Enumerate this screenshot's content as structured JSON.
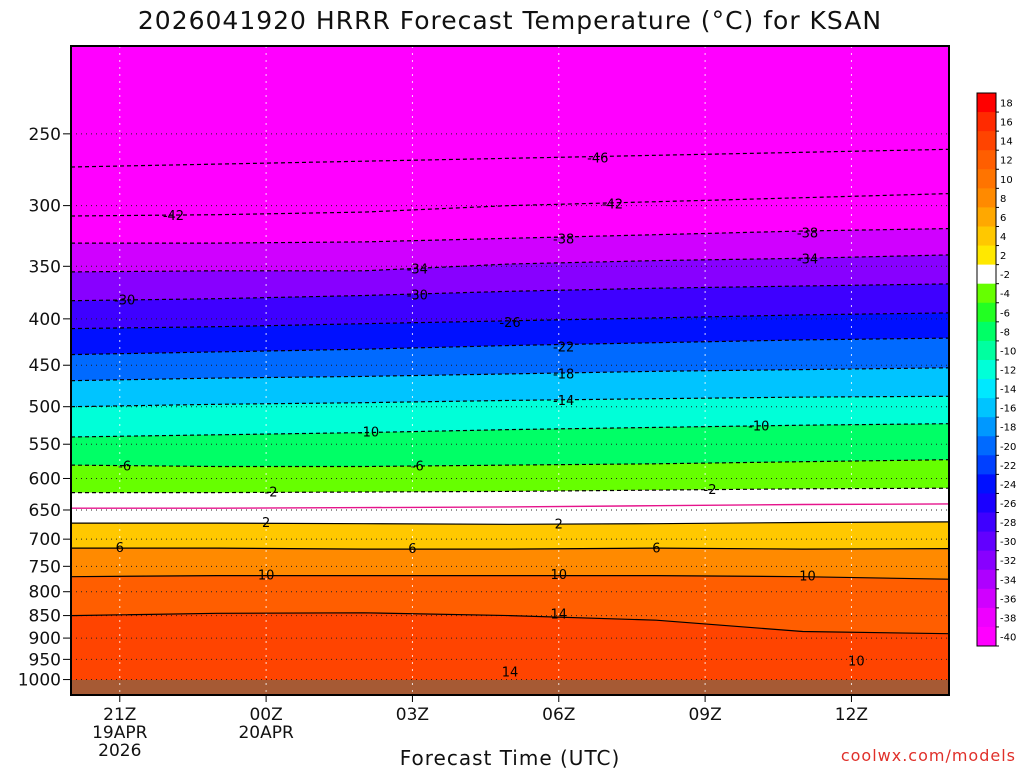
{
  "chart_data": {
    "type": "contour-filled",
    "title": "2026041920 HRRR Forecast Temperature (°C) for KSAN",
    "xlabel": "Forecast Time (UTC)",
    "ylabel": "",
    "credit": "coolwx.com/models",
    "x_ticks": [
      {
        "label": "21Z",
        "hour": 1,
        "date_line1": "19APR",
        "date_line2": "2026"
      },
      {
        "label": "00Z",
        "hour": 4,
        "date_line1": "20APR",
        "date_line2": ""
      },
      {
        "label": "03Z",
        "hour": 7,
        "date_line1": "",
        "date_line2": ""
      },
      {
        "label": "06Z",
        "hour": 10,
        "date_line1": "",
        "date_line2": ""
      },
      {
        "label": "09Z",
        "hour": 13,
        "date_line1": "",
        "date_line2": ""
      },
      {
        "label": "12Z",
        "hour": 16,
        "date_line1": "",
        "date_line2": ""
      }
    ],
    "x_range_hours": [
      0,
      18
    ],
    "y_axis": {
      "units": "hPa",
      "scale": "log",
      "reversed": true,
      "range": [
        1040,
        200
      ],
      "ticks": [
        "250",
        "300",
        "350",
        "400",
        "450",
        "500",
        "550",
        "600",
        "650",
        "700",
        "750",
        "800",
        "850",
        "900",
        "950",
        "1000"
      ]
    },
    "colorbar": {
      "labels": [
        "18",
        "16",
        "14",
        "12",
        "10",
        "8",
        "6",
        "4",
        "2",
        "-2",
        "-4",
        "-6",
        "-8",
        "-10",
        "-12",
        "-14",
        "-16",
        "-18",
        "-20",
        "-22",
        "-24",
        "-26",
        "-28",
        "-30",
        "-32",
        "-34",
        "-36",
        "-38",
        "-40"
      ],
      "colors": [
        "#ff0000",
        "#ff2a00",
        "#ff4400",
        "#ff5e00",
        "#ff7400",
        "#ff8a00",
        "#ffa800",
        "#ffc800",
        "#ffe800",
        "#ffffff",
        "#66ff00",
        "#22ff22",
        "#00ff66",
        "#00ffa0",
        "#00ffd8",
        "#00e8ff",
        "#00c4ff",
        "#0098ff",
        "#006aff",
        "#0040ff",
        "#0010ff",
        "#1a00ff",
        "#3e00ff",
        "#6200ff",
        "#8800ff",
        "#ae00ff",
        "#d000ff",
        "#ee00ff",
        "#ff00ff"
      ]
    },
    "isotherms": [
      {
        "value": -46,
        "label": "-46",
        "pressure": [
          272,
          270,
          268,
          266,
          264,
          262,
          260
        ]
      },
      {
        "value": -42,
        "label": "-42",
        "pressure": [
          308,
          307,
          305,
          300,
          297,
          294,
          291
        ]
      },
      {
        "value": -38,
        "label": "-38",
        "pressure": [
          330,
          330,
          329,
          326,
          323,
          320,
          318
        ]
      },
      {
        "value": -34,
        "label": "-34",
        "pressure": [
          355,
          354,
          354,
          348,
          345,
          343,
          340
        ]
      },
      {
        "value": -30,
        "label": "-30",
        "pressure": [
          382,
          380,
          377,
          373,
          370,
          368,
          366
        ]
      },
      {
        "value": -26,
        "label": "-26",
        "pressure": [
          410,
          408,
          405,
          402,
          399,
          396,
          394
        ]
      },
      {
        "value": -22,
        "label": "-22",
        "pressure": [
          438,
          435,
          432,
          428,
          425,
          422,
          420
        ]
      },
      {
        "value": -18,
        "label": "-18",
        "pressure": [
          468,
          465,
          463,
          460,
          457,
          455,
          453
        ]
      },
      {
        "value": -14,
        "label": "-14",
        "pressure": [
          500,
          497,
          495,
          492,
          490,
          488,
          487
        ]
      },
      {
        "value": -10,
        "label": "-10",
        "pressure": [
          540,
          537,
          534,
          530,
          527,
          524,
          522
        ]
      },
      {
        "value": -6,
        "label": "-6",
        "pressure": [
          580,
          582,
          582,
          580,
          578,
          575,
          572
        ]
      },
      {
        "value": -2,
        "label": "-2",
        "pressure": [
          622,
          622,
          621,
          620,
          618,
          616,
          615
        ]
      },
      {
        "value": 0,
        "label": "",
        "pressure": [
          647,
          647,
          646,
          645,
          643,
          641,
          640
        ]
      },
      {
        "value": 2,
        "label": "2",
        "pressure": [
          672,
          672,
          673,
          674,
          673,
          671,
          670
        ]
      },
      {
        "value": 6,
        "label": "6",
        "pressure": [
          716,
          716,
          718,
          718,
          716,
          718,
          717
        ]
      },
      {
        "value": 10,
        "label": "10",
        "pressure": [
          770,
          768,
          768,
          768,
          768,
          770,
          775
        ]
      },
      {
        "value": 14,
        "label": "14",
        "pressure": [
          850,
          845,
          844,
          850,
          860,
          885,
          890
        ]
      }
    ],
    "contour_labels": [
      {
        "text": "-46",
        "hour": 10.8,
        "pressure": 266
      },
      {
        "text": "-42",
        "hour": 2.1,
        "pressure": 308
      },
      {
        "text": "-42",
        "hour": 11.1,
        "pressure": 299
      },
      {
        "text": "-38",
        "hour": 10.1,
        "pressure": 327
      },
      {
        "text": "-38",
        "hour": 15.1,
        "pressure": 322
      },
      {
        "text": "-34",
        "hour": 7.1,
        "pressure": 353
      },
      {
        "text": "-34",
        "hour": 15.1,
        "pressure": 344
      },
      {
        "text": "-30",
        "hour": 1.1,
        "pressure": 382
      },
      {
        "text": "-30",
        "hour": 7.1,
        "pressure": 377
      },
      {
        "text": "-26",
        "hour": 9.0,
        "pressure": 404
      },
      {
        "text": "-22",
        "hour": 10.1,
        "pressure": 430
      },
      {
        "text": "-18",
        "hour": 10.1,
        "pressure": 461
      },
      {
        "text": "-14",
        "hour": 10.1,
        "pressure": 493
      },
      {
        "text": "-10",
        "hour": 6.1,
        "pressure": 534
      },
      {
        "text": "-10",
        "hour": 14.1,
        "pressure": 526
      },
      {
        "text": "-6",
        "hour": 1.1,
        "pressure": 582
      },
      {
        "text": "-6",
        "hour": 7.1,
        "pressure": 582
      },
      {
        "text": "-2",
        "hour": 4.1,
        "pressure": 622
      },
      {
        "text": "-2",
        "hour": 13.1,
        "pressure": 618
      },
      {
        "text": "2",
        "hour": 4.0,
        "pressure": 672
      },
      {
        "text": "2",
        "hour": 10.0,
        "pressure": 674
      },
      {
        "text": "6",
        "hour": 1.0,
        "pressure": 716
      },
      {
        "text": "6",
        "hour": 7.0,
        "pressure": 718
      },
      {
        "text": "6",
        "hour": 12.0,
        "pressure": 717
      },
      {
        "text": "10",
        "hour": 4.0,
        "pressure": 768
      },
      {
        "text": "10",
        "hour": 10.0,
        "pressure": 767
      },
      {
        "text": "10",
        "hour": 15.1,
        "pressure": 770
      },
      {
        "text": "10",
        "hour": 16.1,
        "pressure": 955
      },
      {
        "text": "14",
        "hour": 10.0,
        "pressure": 848
      },
      {
        "text": "14",
        "hour": 9.0,
        "pressure": 982
      }
    ]
  }
}
